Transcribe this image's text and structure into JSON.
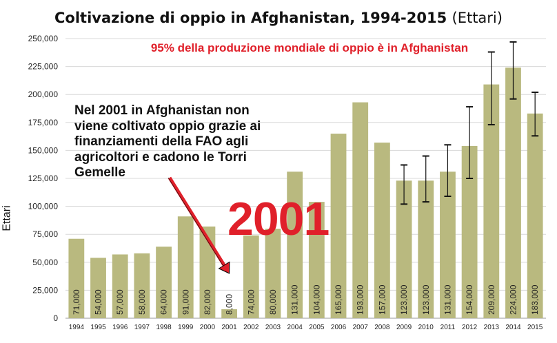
{
  "chart_data": {
    "type": "bar",
    "title": "Coltivazione di oppio in Afghanistan, 1994-2015",
    "title_unit": "(Ettari)",
    "subtitle": "95% della produzione mondiale di oppio è in Afghanistan",
    "ylabel": "Ettari",
    "xlabel": "",
    "ylim": [
      0,
      250000
    ],
    "yticks": [
      "0",
      "25,000",
      "50,000",
      "75,000",
      "100,000",
      "125,000",
      "150,000",
      "175,000",
      "200,000",
      "225,000",
      "250,000"
    ],
    "categories": [
      "1994",
      "1995",
      "1996",
      "1997",
      "1998",
      "1999",
      "2000",
      "2001",
      "2002",
      "2003",
      "2004",
      "2005",
      "2006",
      "2007",
      "2008",
      "2009",
      "2010",
      "2011",
      "2012",
      "2013",
      "2014",
      "2015"
    ],
    "values": [
      71000,
      54000,
      57000,
      58000,
      64000,
      91000,
      82000,
      8000,
      74000,
      80000,
      131000,
      104000,
      165000,
      193000,
      157000,
      123000,
      123000,
      131000,
      154000,
      209000,
      224000,
      183000
    ],
    "data_labels": [
      "71,000",
      "54,000",
      "57,000",
      "58,000",
      "64,000",
      "91,000",
      "82,000",
      "8,000",
      "74,000",
      "80,000",
      "131,000",
      "104,000",
      "165,000",
      "193,000",
      "157,000",
      "123,000",
      "123,000",
      "131,000",
      "154,000",
      "209,000",
      "224,000",
      "183,000"
    ],
    "error_bars": [
      {
        "category": "2009",
        "low": 102000,
        "high": 137000
      },
      {
        "category": "2010",
        "low": 104000,
        "high": 145000
      },
      {
        "category": "2011",
        "low": 109000,
        "high": 155000
      },
      {
        "category": "2012",
        "low": 125000,
        "high": 189000
      },
      {
        "category": "2013",
        "low": 173000,
        "high": 238000
      },
      {
        "category": "2014",
        "low": 196000,
        "high": 247000
      },
      {
        "category": "2015",
        "low": 163000,
        "high": 202000
      }
    ],
    "annotation": {
      "text": "Nel 2001 in Afghanistan non viene coltivato oppio grazie ai finanziamenti della FAO agli agricoltori e cadono le Torri Gemelle",
      "big_label": "2001",
      "arrow_target": "2001"
    },
    "grid": true,
    "legend": "none",
    "colors": {
      "bar": "#b9b97f",
      "annotation": "#e0202a",
      "grid": "#d8d8d8",
      "arrow": "#e0202a"
    }
  }
}
